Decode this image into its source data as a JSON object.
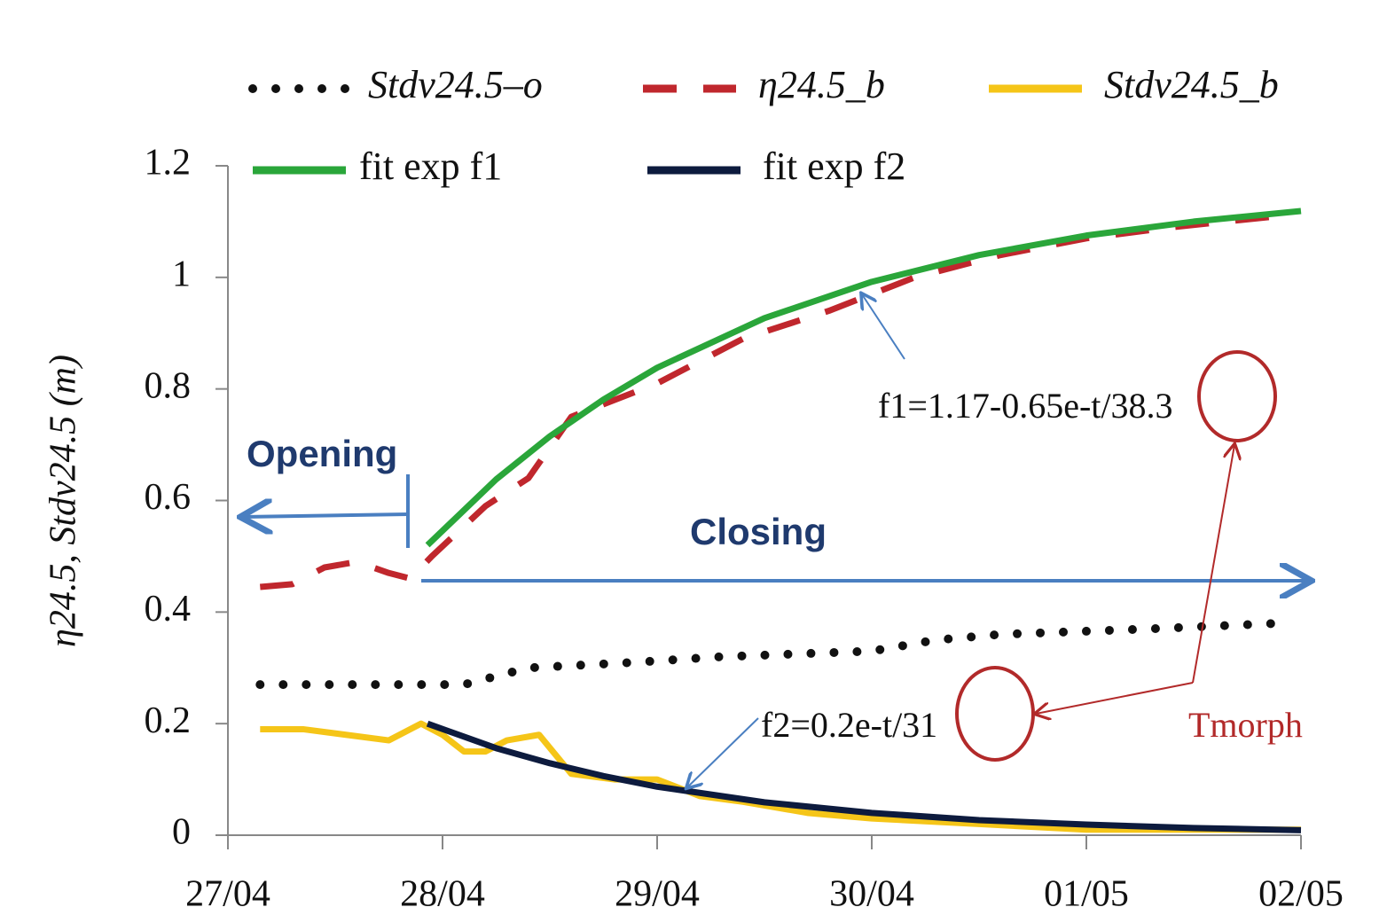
{
  "chart_data": {
    "type": "line",
    "y_label": "η24.5, Stdv24.5 (m)",
    "xlim": [
      0,
      5
    ],
    "xticks": [
      {
        "value": 0,
        "label": "27/04"
      },
      {
        "value": 1,
        "label": "28/04"
      },
      {
        "value": 2,
        "label": "29/04"
      },
      {
        "value": 3,
        "label": "30/04"
      },
      {
        "value": 4,
        "label": "01/05"
      },
      {
        "value": 5,
        "label": "02/05"
      }
    ],
    "ylim": [
      0,
      1.2
    ],
    "yticks": [
      0,
      0.2,
      0.4,
      0.6,
      0.8,
      1,
      1.2
    ],
    "series": [
      {
        "name": "Stdv24.5–o",
        "color": "#111111",
        "style": "dotted",
        "x": [
          0.15,
          0.6,
          1.1,
          1.4,
          1.9,
          2.3,
          3.0,
          3.3,
          3.6,
          4.3,
          4.9
        ],
        "values": [
          0.27,
          0.27,
          0.27,
          0.3,
          0.31,
          0.32,
          0.33,
          0.35,
          0.36,
          0.37,
          0.38
        ]
      },
      {
        "name": "η24.5_b",
        "color": "#c0272d",
        "style": "dashed",
        "x": [
          0.15,
          0.3,
          0.45,
          0.6,
          0.75,
          0.85,
          0.95,
          1.2,
          1.4,
          1.6,
          2.0,
          2.4,
          2.8,
          3.2,
          3.6,
          4.0,
          4.4,
          4.9
        ],
        "values": [
          0.445,
          0.45,
          0.48,
          0.49,
          0.47,
          0.46,
          0.5,
          0.59,
          0.64,
          0.75,
          0.81,
          0.89,
          0.94,
          1.0,
          1.04,
          1.07,
          1.09,
          1.11
        ]
      },
      {
        "name": "Stdv24.5_b",
        "color": "#f5c518",
        "style": "solid",
        "x": [
          0.15,
          0.35,
          0.55,
          0.75,
          0.9,
          1.0,
          1.1,
          1.2,
          1.3,
          1.45,
          1.6,
          1.8,
          2.0,
          2.2,
          2.4,
          2.7,
          3.0,
          3.5,
          4.0,
          5.0
        ],
        "values": [
          0.19,
          0.19,
          0.18,
          0.17,
          0.2,
          0.18,
          0.15,
          0.15,
          0.17,
          0.18,
          0.11,
          0.1,
          0.1,
          0.07,
          0.06,
          0.04,
          0.03,
          0.02,
          0.01,
          0.01
        ]
      },
      {
        "name": "fit exp f1",
        "color": "#2aa63a",
        "style": "solid",
        "x": [
          0.93,
          1.25,
          1.5,
          1.75,
          2.0,
          2.5,
          3.0,
          3.5,
          4.0,
          4.5,
          5.0
        ],
        "values": [
          0.52,
          0.638,
          0.715,
          0.781,
          0.838,
          0.927,
          0.992,
          1.04,
          1.075,
          1.1,
          1.119
        ]
      },
      {
        "name": "fit exp f2",
        "color": "#0d1b3e",
        "style": "solid",
        "x": [
          0.93,
          1.25,
          1.5,
          1.75,
          2.0,
          2.5,
          3.0,
          3.5,
          4.0,
          4.5,
          5.0
        ],
        "values": [
          0.2,
          0.156,
          0.129,
          0.106,
          0.087,
          0.059,
          0.04,
          0.027,
          0.019,
          0.013,
          0.009
        ]
      }
    ],
    "annotations": [
      "Opening",
      "Closing",
      "f1=1.17-0.65e-t/38.3",
      "f2=0.2e-t/31",
      "Tmorph"
    ]
  }
}
